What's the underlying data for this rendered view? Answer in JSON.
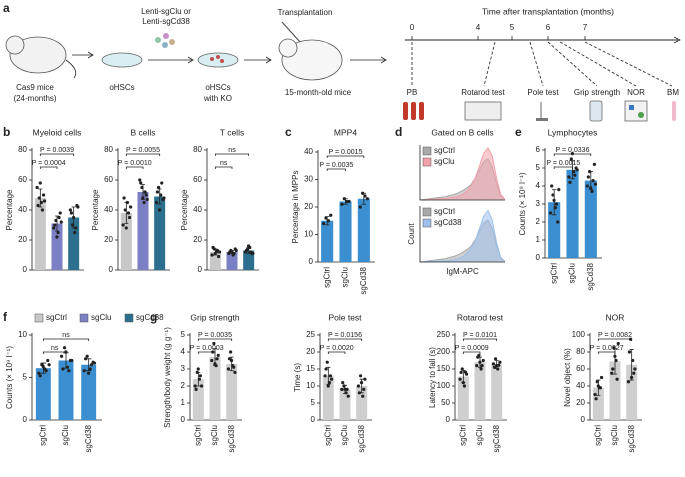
{
  "schematic": {
    "panel": "a",
    "labels": {
      "mice": [
        "Cas9 mice",
        "(24-months)"
      ],
      "lenti": [
        "Lenti-sgClu or",
        "Lenti-sgCd38"
      ],
      "ohsc": "oHSCs",
      "ko": [
        "oHSCs",
        "with KO"
      ],
      "transplant": "Transplantation",
      "recipient": "15-month-old mice"
    },
    "timeline": {
      "title": "Time after transplantation (months)",
      "ticks": [
        0,
        4,
        5,
        6,
        7
      ],
      "tests": [
        "PB",
        "Rotarod test",
        "Pole test",
        "Grip strength",
        "NOR",
        "BM"
      ]
    }
  },
  "chart_data": [
    {
      "type": "bar",
      "panel": "b",
      "title": "Myeloid cells",
      "ylabel": "Percentage",
      "categories": [
        null,
        null,
        null
      ],
      "colors": [
        "#c8c8c8",
        "#7b7fc4",
        "#2c6f8f"
      ],
      "legend": [
        {
          "name": "sgCtrl",
          "color": "#c8c8c8"
        },
        {
          "name": "sgClu",
          "color": "#7b7fc4"
        },
        {
          "name": "sgCd38",
          "color": "#2c6f8f"
        }
      ],
      "values": [
        48,
        31,
        35
      ],
      "errors": [
        6,
        5,
        7
      ],
      "points": [
        [
          55,
          48,
          45,
          50,
          43,
          58,
          40,
          46
        ],
        [
          28,
          33,
          25,
          38,
          30,
          22,
          35,
          32
        ],
        [
          40,
          30,
          25,
          43,
          38,
          35,
          28,
          42
        ]
      ],
      "ylim": [
        0,
        80
      ],
      "yticks": [
        0,
        20,
        40,
        60,
        80
      ],
      "comparisons": [
        {
          "pair": [
            0,
            2
          ],
          "label": "P = 0.0039"
        },
        {
          "pair": [
            0,
            1
          ],
          "label": "P = 0.0004"
        }
      ]
    },
    {
      "type": "bar",
      "title": "B cells",
      "ylabel": "Percentage",
      "categories": [
        null,
        null,
        null
      ],
      "colors": [
        "#c8c8c8",
        "#7b7fc4",
        "#2c6f8f"
      ],
      "values": [
        38,
        52,
        49
      ],
      "errors": [
        7,
        5,
        5
      ],
      "points": [
        [
          30,
          40,
          45,
          35,
          48,
          28,
          38,
          42
        ],
        [
          60,
          55,
          45,
          50,
          58,
          48,
          52,
          47
        ],
        [
          45,
          55,
          50,
          47,
          52,
          40,
          58,
          48
        ]
      ],
      "ylim": [
        0,
        80
      ],
      "yticks": [
        0,
        20,
        40,
        60,
        80
      ],
      "comparisons": [
        {
          "pair": [
            0,
            2
          ],
          "label": "P = 0.0055"
        },
        {
          "pair": [
            0,
            1
          ],
          "label": "P = 0.0010"
        }
      ]
    },
    {
      "type": "bar",
      "title": "T cells",
      "ylabel": "Percentage",
      "categories": [
        null,
        null,
        null
      ],
      "colors": [
        "#c8c8c8",
        "#7b7fc4",
        "#2c6f8f"
      ],
      "values": [
        12,
        12,
        13
      ],
      "errors": [
        2,
        1,
        2
      ],
      "points": [
        [
          10,
          14,
          12,
          9,
          15,
          11,
          13,
          12
        ],
        [
          11,
          13,
          10,
          14,
          12,
          12,
          11,
          13
        ],
        [
          12,
          14,
          15,
          11,
          13,
          16,
          12,
          11
        ]
      ],
      "ylim": [
        0,
        80
      ],
      "yticks": [
        0,
        20,
        40,
        60,
        80
      ],
      "comparisons": [
        {
          "pair": [
            0,
            2
          ],
          "label": "ns"
        },
        {
          "pair": [
            0,
            1
          ],
          "label": "ns"
        }
      ]
    },
    {
      "type": "bar",
      "panel": "c",
      "title": "MPP4",
      "ylabel": "Percentage in MPPs",
      "categories": [
        "sgCtrl",
        "sgClu",
        "sgCd38"
      ],
      "color": "#3b8fd0",
      "values": [
        15,
        22,
        23
      ],
      "errors": [
        1.5,
        1,
        2
      ],
      "points": [
        [
          14,
          16,
          15,
          17
        ],
        [
          21,
          23,
          22,
          22
        ],
        [
          20,
          25,
          24,
          23
        ]
      ],
      "ylim": [
        0,
        40
      ],
      "yticks": [
        0,
        10,
        20,
        30,
        40
      ],
      "comparisons": [
        {
          "pair": [
            0,
            2
          ],
          "label": "P = 0.0015"
        },
        {
          "pair": [
            0,
            1
          ],
          "label": "P = 0.0035"
        }
      ]
    },
    {
      "type": "area",
      "panel": "d",
      "title": "Gated on B cells",
      "x": [
        0,
        1,
        2,
        3,
        4,
        5,
        6,
        7,
        8,
        9,
        10,
        11,
        12,
        13,
        14,
        15,
        16,
        17,
        18,
        19,
        20
      ],
      "xlim": [
        0,
        20
      ],
      "ylim": [
        0,
        100
      ],
      "series": [
        {
          "name": "sgCtrl",
          "color": "#a9a9a9",
          "values": [
            0,
            1,
            2,
            3,
            4,
            5,
            6,
            8,
            10,
            13,
            17,
            22,
            28,
            40,
            55,
            70,
            75,
            60,
            30,
            8,
            1
          ]
        },
        {
          "name": "sgClu",
          "color": "#f2a0aa",
          "values": [
            0,
            0,
            1,
            1,
            2,
            2,
            3,
            4,
            5,
            7,
            10,
            16,
            25,
            40,
            62,
            85,
            95,
            80,
            40,
            10,
            1
          ]
        }
      ]
    },
    {
      "type": "area",
      "xlabel": "IgM-APC",
      "ylabel": "Count",
      "x": [
        0,
        1,
        2,
        3,
        4,
        5,
        6,
        7,
        8,
        9,
        10,
        11,
        12,
        13,
        14,
        15,
        16,
        17,
        18,
        19,
        20
      ],
      "xlim": [
        0,
        20
      ],
      "ylim": [
        0,
        100
      ],
      "series": [
        {
          "name": "sgCtrl",
          "color": "#a9a9a9",
          "values": [
            0,
            1,
            2,
            3,
            4,
            5,
            6,
            8,
            10,
            13,
            17,
            22,
            28,
            40,
            55,
            70,
            75,
            60,
            30,
            8,
            1
          ]
        },
        {
          "name": "sgCd38",
          "color": "#9cc0ea",
          "values": [
            0,
            0,
            1,
            1,
            1,
            2,
            2,
            3,
            4,
            6,
            9,
            15,
            24,
            38,
            60,
            82,
            92,
            75,
            35,
            8,
            1
          ]
        }
      ]
    },
    {
      "type": "bar",
      "panel": "e",
      "title": "Lymphocytes",
      "ylabel": "Counts (× 10⁹ l⁻¹)",
      "categories": [
        "sgCtrl",
        "sgClu",
        "sgCd38"
      ],
      "color": "#3b8fd0",
      "values": [
        3.1,
        4.9,
        4.3
      ],
      "errors": [
        0.7,
        0.5,
        0.5
      ],
      "points": [
        [
          2.5,
          3.5,
          2.8,
          2.0,
          4.0,
          3.2,
          3.0,
          3.8
        ],
        [
          4.5,
          5.5,
          4.8,
          5.0,
          4.2,
          5.8,
          4.6,
          4.9
        ],
        [
          4.0,
          4.8,
          3.7,
          5.2,
          4.5,
          3.9,
          4.3,
          4.1
        ]
      ],
      "ylim": [
        0,
        6
      ],
      "yticks": [
        0,
        1,
        2,
        3,
        4,
        5,
        6
      ],
      "comparisons": [
        {
          "pair": [
            0,
            2
          ],
          "label": "P = 0.0336"
        },
        {
          "pair": [
            0,
            1
          ],
          "label": "P = 0.0015"
        }
      ]
    },
    {
      "type": "bar",
      "panel": "f",
      "ylabel": "Counts (× 10⁹ l⁻¹)",
      "categories": [
        "sgCtrl",
        "sgClu",
        "sgCd38"
      ],
      "color": "#3b8fd0",
      "values": [
        6.1,
        7.0,
        6.5
      ],
      "errors": [
        0.6,
        0.9,
        0.7
      ],
      "points": [
        [
          5.5,
          6.5,
          6.0,
          7.0,
          5.2,
          6.3,
          5.8,
          6.5
        ],
        [
          7.5,
          8.5,
          6.2,
          7.0,
          6.0,
          8.0,
          5.8,
          7.0
        ],
        [
          5.8,
          7.5,
          6.0,
          6.8,
          7.2,
          5.5,
          6.5,
          6.7
        ]
      ],
      "ylim": [
        0,
        10
      ],
      "yticks": [
        0,
        5,
        10
      ],
      "comparisons": [
        {
          "pair": [
            0,
            2
          ],
          "label": "ns"
        },
        {
          "pair": [
            0,
            1
          ],
          "label": "ns"
        }
      ]
    },
    {
      "type": "bar",
      "panel": "g",
      "title": "Grip strength",
      "ylabel": "Strength/body weight (g g⁻¹)",
      "categories": [
        "sgCtrl",
        "sgClu",
        "sgCd38"
      ],
      "color": "#cfcfcf",
      "values": [
        2.4,
        3.7,
        3.3
      ],
      "errors": [
        0.4,
        0.5,
        0.4
      ],
      "points": [
        [
          2.0,
          2.8,
          2.4,
          2.0,
          1.8,
          3.0,
          2.6
        ],
        [
          3.5,
          4.5,
          3.2,
          3.8,
          4.0,
          3.3,
          3.6
        ],
        [
          3.0,
          4.0,
          3.2,
          2.8,
          3.6,
          3.5,
          3.1
        ]
      ],
      "ylim": [
        0,
        5
      ],
      "yticks": [
        0,
        1,
        2,
        3,
        4,
        5
      ],
      "comparisons": [
        {
          "pair": [
            0,
            2
          ],
          "label": "P = 0.0035"
        },
        {
          "pair": [
            0,
            1
          ],
          "label": "P = 0.0003"
        }
      ]
    },
    {
      "type": "bar",
      "title": "Pole test",
      "ylabel": "Time (s)",
      "categories": [
        "sgCtrl",
        "sgClu",
        "sgCd38"
      ],
      "color": "#cfcfcf",
      "values": [
        13,
        9,
        10
      ],
      "errors": [
        2.5,
        1.2,
        2
      ],
      "points": [
        [
          13,
          17,
          11,
          12,
          15,
          10,
          13
        ],
        [
          9,
          10,
          8,
          7,
          11,
          9,
          9
        ],
        [
          10,
          13,
          7,
          12,
          8,
          11,
          9
        ]
      ],
      "ylim": [
        0,
        25
      ],
      "yticks": [
        0,
        5,
        10,
        15,
        20,
        25
      ],
      "comparisons": [
        {
          "pair": [
            0,
            2
          ],
          "label": "P = 0.0156"
        },
        {
          "pair": [
            0,
            1
          ],
          "label": "P = 0.0020"
        }
      ]
    },
    {
      "type": "bar",
      "title": "Rotarod test",
      "ylabel": "Latency to fall (s)",
      "categories": [
        "sgCtrl",
        "sgClu",
        "sgCd38"
      ],
      "color": "#cfcfcf",
      "values": [
        128,
        170,
        163
      ],
      "errors": [
        18,
        15,
        12
      ],
      "points": [
        [
          120,
          150,
          100,
          135,
          140,
          110,
          141
        ],
        [
          160,
          190,
          150,
          175,
          185,
          170,
          160
        ],
        [
          165,
          180,
          150,
          170,
          155,
          160,
          161
        ]
      ],
      "ylim": [
        0,
        250
      ],
      "yticks": [
        0,
        50,
        100,
        150,
        200,
        250
      ],
      "comparisons": [
        {
          "pair": [
            0,
            2
          ],
          "label": "P = 0.0101"
        },
        {
          "pair": [
            0,
            1
          ],
          "label": "P = 0.0009"
        }
      ]
    },
    {
      "type": "bar",
      "title": "NOR",
      "ylabel": "Novel object (%)",
      "categories": [
        "sgCtrl",
        "sgClu",
        "sgCd38"
      ],
      "color": "#cfcfcf",
      "values": [
        38,
        69,
        65
      ],
      "errors": [
        9,
        15,
        18
      ],
      "points": [
        [
          30,
          45,
          38,
          50,
          25,
          40,
          38
        ],
        [
          55,
          85,
          70,
          90,
          60,
          75,
          48
        ],
        [
          45,
          95,
          70,
          60,
          80,
          50,
          55
        ]
      ],
      "ylim": [
        0,
        100
      ],
      "yticks": [
        0,
        20,
        40,
        60,
        80,
        100
      ],
      "comparisons": [
        {
          "pair": [
            0,
            2
          ],
          "label": "P = 0.0082"
        },
        {
          "pair": [
            0,
            1
          ],
          "label": "P = 0.0027"
        }
      ]
    }
  ]
}
